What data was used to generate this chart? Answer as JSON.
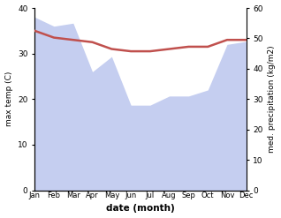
{
  "months": [
    "Jan",
    "Feb",
    "Mar",
    "Apr",
    "May",
    "Jun",
    "Jul",
    "Aug",
    "Sep",
    "Oct",
    "Nov",
    "Dec"
  ],
  "max_temp": [
    35.0,
    33.5,
    33.0,
    32.5,
    31.0,
    30.5,
    30.5,
    31.0,
    31.5,
    31.5,
    33.0,
    33.0
  ],
  "precipitation": [
    57.0,
    54.0,
    55.0,
    39.0,
    44.0,
    28.0,
    28.0,
    31.0,
    31.0,
    33.0,
    48.0,
    49.0
  ],
  "temp_color": "#c0504d",
  "precip_fill_color": "#c5cef0",
  "xlabel": "date (month)",
  "ylabel_left": "max temp (C)",
  "ylabel_right": "med. precipitation (kg/m2)",
  "ylim_left": [
    0,
    40
  ],
  "ylim_right": [
    0,
    60
  ],
  "yticks_left": [
    0,
    10,
    20,
    30,
    40
  ],
  "yticks_right": [
    0,
    10,
    20,
    30,
    40,
    50,
    60
  ],
  "temp_linewidth": 1.8
}
